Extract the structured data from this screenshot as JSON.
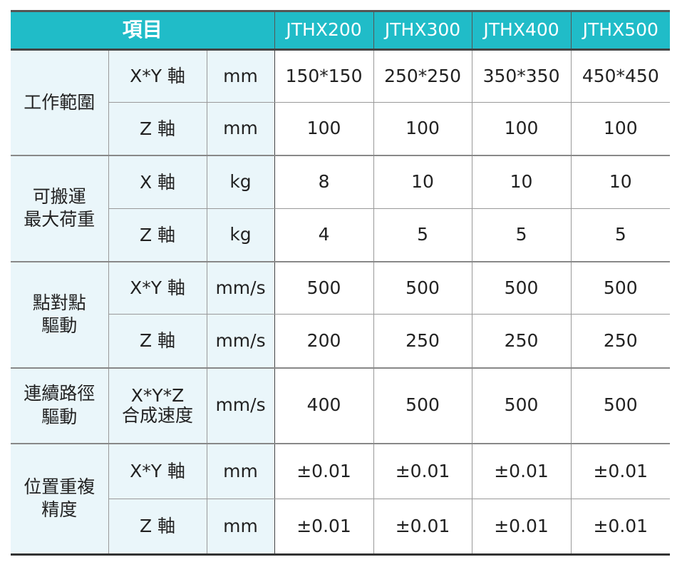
{
  "colors": {
    "accent": "#20bcc8",
    "light": "#eaf6fa"
  },
  "header": {
    "item": "項目",
    "models": [
      "JTHX200",
      "JTHX300",
      "JTHX400",
      "JTHX500"
    ]
  },
  "groups": [
    {
      "name": "工作範圍",
      "rows": [
        {
          "axis": "X*Y 軸",
          "unit": "mm",
          "values": [
            "150*150",
            "250*250",
            "350*350",
            "450*450"
          ]
        },
        {
          "axis": "Z 軸",
          "unit": "mm",
          "values": [
            "100",
            "100",
            "100",
            "100"
          ]
        }
      ]
    },
    {
      "name": "可搬運\n最大荷重",
      "rows": [
        {
          "axis": "X 軸",
          "unit": "kg",
          "values": [
            "8",
            "10",
            "10",
            "10"
          ]
        },
        {
          "axis": "Z 軸",
          "unit": "kg",
          "values": [
            "4",
            "5",
            "5",
            "5"
          ]
        }
      ]
    },
    {
      "name": "點對點\n驅動",
      "rows": [
        {
          "axis": "X*Y 軸",
          "unit": "mm/s",
          "values": [
            "500",
            "500",
            "500",
            "500"
          ]
        },
        {
          "axis": "Z 軸",
          "unit": "mm/s",
          "values": [
            "200",
            "250",
            "250",
            "250"
          ]
        }
      ]
    },
    {
      "name": "連續路徑\n驅動",
      "rows": [
        {
          "axis": "X*Y*Z\n合成速度",
          "unit": "mm/s",
          "values": [
            "400",
            "500",
            "500",
            "500"
          ]
        }
      ]
    },
    {
      "name": "位置重複\n精度",
      "rows": [
        {
          "axis": "X*Y 軸",
          "unit": "mm",
          "values": [
            "±0.01",
            "±0.01",
            "±0.01",
            "±0.01"
          ]
        },
        {
          "axis": "Z 軸",
          "unit": "mm",
          "values": [
            "±0.01",
            "±0.01",
            "±0.01",
            "±0.01"
          ]
        }
      ]
    }
  ]
}
